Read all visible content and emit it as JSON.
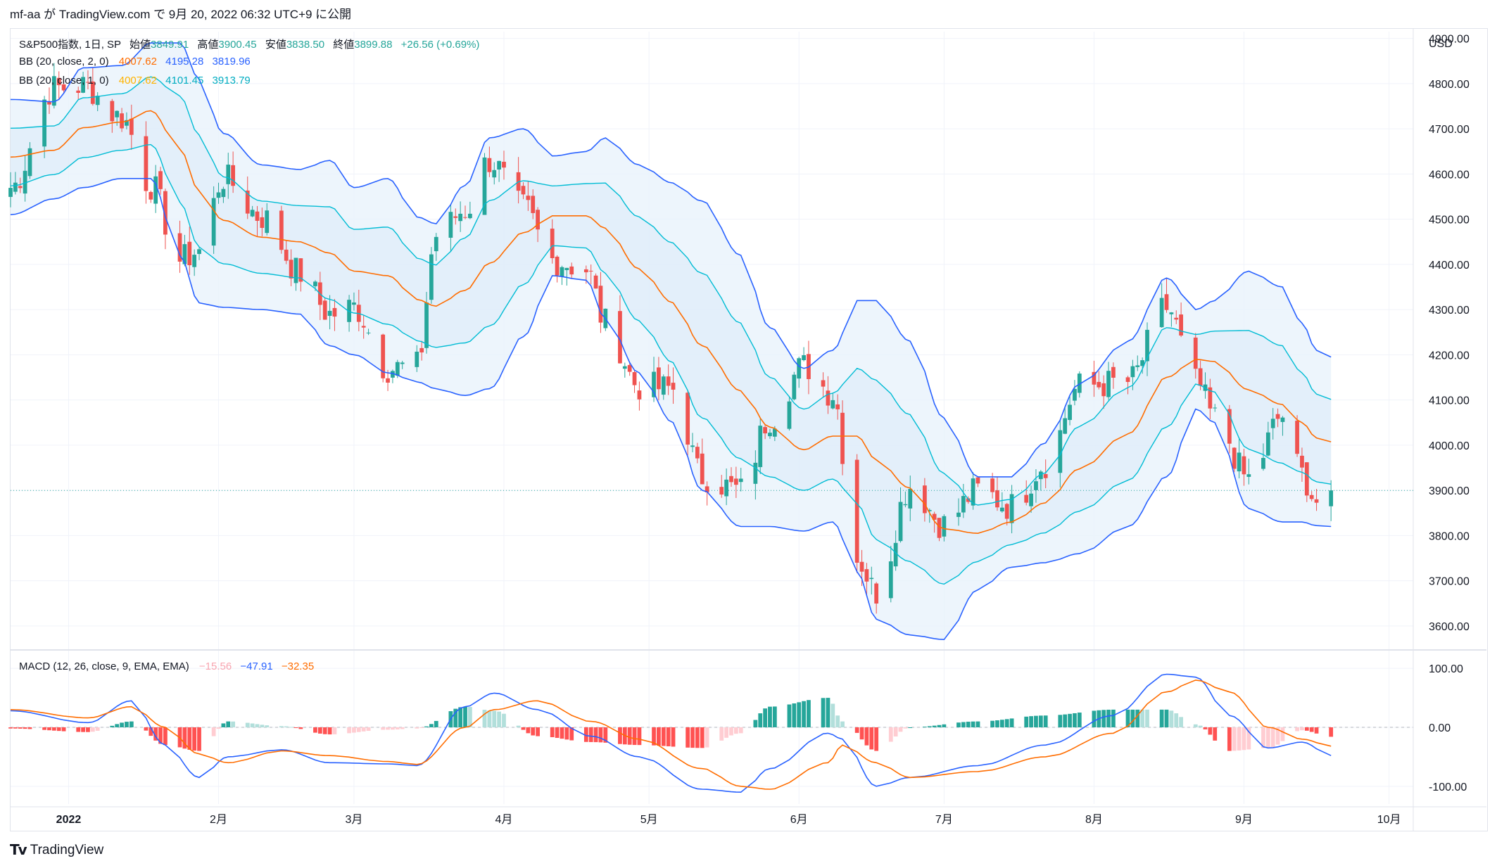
{
  "header": {
    "text": "mf-aa が TradingView.com で 9月 20, 2022 06:32 UTC+9 に公開"
  },
  "legend": {
    "main": {
      "name": "S&P500指数, 1日, SP",
      "o_label": "始値",
      "o": "3849.91",
      "h_label": "高値",
      "h": "3900.45",
      "l_label": "安値",
      "l": "3838.50",
      "c_label": "終値",
      "c": "3899.88",
      "chg": "+26.56 (+0.69%)"
    },
    "bb2": {
      "name": "BB (20, close, 2, 0)",
      "basis": "4007.62",
      "upper": "4195.28",
      "lower": "3819.96"
    },
    "bb1": {
      "name": "BB (20, close, 1, 0)",
      "basis": "4007.62",
      "upper": "4101.45",
      "lower": "3913.79"
    },
    "macd": {
      "name": "MACD (12, 26, close, 9, EMA, EMA)",
      "hist": "−15.56",
      "macd": "−47.91",
      "signal": "−32.35"
    }
  },
  "currency": "USD",
  "footer": {
    "brand": "TradingView"
  },
  "colors": {
    "up": "#26a69a",
    "down": "#ef5350",
    "bb2": "#2962ff",
    "bb1": "#00bcd4",
    "basis": "#ff6d00",
    "fill": "#e8f2fb",
    "macd": "#2962ff",
    "signal": "#ff6d00",
    "hist_up_strong": "#26a69a",
    "hist_up_weak": "#b2dfdb",
    "hist_down_strong": "#ff5252",
    "hist_down_weak": "#ffcdd2"
  },
  "chart_data": [
    {
      "type": "candlestick",
      "title": "S&P500指数, 1日, SP",
      "ylabel": "USD",
      "ylim": [
        3550,
        4915
      ],
      "y_ticks": [
        "3600.00",
        "3700.00",
        "3800.00",
        "3900.00",
        "4000.00",
        "4100.00",
        "4200.00",
        "4300.00",
        "4400.00",
        "4500.00",
        "4600.00",
        "4700.00",
        "4800.00",
        "4900.00"
      ],
      "x_ticks": [
        "2022",
        "2月",
        "3月",
        "4月",
        "5月",
        "6月",
        "7月",
        "8月",
        "9月",
        "10月"
      ],
      "x_range_dates": [
        "2021-12-20",
        "2022-10-06"
      ],
      "x_tick_dates": [
        "2022-01-01",
        "2022-02-01",
        "2022-03-01",
        "2022-04-01",
        "2022-05-01",
        "2022-06-01",
        "2022-07-01",
        "2022-08-01",
        "2022-09-01",
        "2022-10-01"
      ],
      "current_price": 3899.88,
      "anchors": [
        {
          "date": "2021-12-20",
          "close": 4570,
          "upper2": 4765,
          "lower2": 4510
        },
        {
          "date": "2021-12-29",
          "close": 4790,
          "upper2": 4760,
          "lower2": 4545
        },
        {
          "date": "2022-01-04",
          "close": 4795,
          "upper2": 4835,
          "lower2": 4570
        },
        {
          "date": "2022-01-12",
          "close": 4725,
          "upper2": 4840,
          "lower2": 4590
        },
        {
          "date": "2022-01-18",
          "close": 4575,
          "upper2": 4890,
          "lower2": 4590
        },
        {
          "date": "2022-01-24",
          "close": 4410,
          "upper2": 4890,
          "lower2": 4420
        },
        {
          "date": "2022-01-28",
          "close": 4430,
          "upper2": 4810,
          "lower2": 4315
        },
        {
          "date": "2022-02-02",
          "close": 4590,
          "upper2": 4690,
          "lower2": 4305
        },
        {
          "date": "2022-02-10",
          "close": 4505,
          "upper2": 4620,
          "lower2": 4300
        },
        {
          "date": "2022-02-18",
          "close": 4380,
          "upper2": 4610,
          "lower2": 4290
        },
        {
          "date": "2022-02-24",
          "close": 4290,
          "upper2": 4630,
          "lower2": 4220
        },
        {
          "date": "2022-03-01",
          "close": 4305,
          "upper2": 4570,
          "lower2": 4200
        },
        {
          "date": "2022-03-08",
          "close": 4170,
          "upper2": 4590,
          "lower2": 4160
        },
        {
          "date": "2022-03-14",
          "close": 4175,
          "upper2": 4505,
          "lower2": 4140
        },
        {
          "date": "2022-03-18",
          "close": 4465,
          "upper2": 4490,
          "lower2": 4125
        },
        {
          "date": "2022-03-24",
          "close": 4520,
          "upper2": 4575,
          "lower2": 4110
        },
        {
          "date": "2022-03-29",
          "close": 4630,
          "upper2": 4680,
          "lower2": 4125
        },
        {
          "date": "2022-04-05",
          "close": 4525,
          "upper2": 4700,
          "lower2": 4240
        },
        {
          "date": "2022-04-11",
          "close": 4410,
          "upper2": 4640,
          "lower2": 4375
        },
        {
          "date": "2022-04-18",
          "close": 4390,
          "upper2": 4650,
          "lower2": 4365
        },
        {
          "date": "2022-04-22",
          "close": 4270,
          "upper2": 4680,
          "lower2": 4280
        },
        {
          "date": "2022-04-29",
          "close": 4130,
          "upper2": 4620,
          "lower2": 4160
        },
        {
          "date": "2022-05-06",
          "close": 4125,
          "upper2": 4580,
          "lower2": 4050
        },
        {
          "date": "2022-05-12",
          "close": 3930,
          "upper2": 4540,
          "lower2": 3900
        },
        {
          "date": "2022-05-20",
          "close": 3900,
          "upper2": 4420,
          "lower2": 3820
        },
        {
          "date": "2022-05-26",
          "close": 4060,
          "upper2": 4260,
          "lower2": 3820
        },
        {
          "date": "2022-06-02",
          "close": 4175,
          "upper2": 4170,
          "lower2": 3810
        },
        {
          "date": "2022-06-08",
          "close": 4115,
          "upper2": 4210,
          "lower2": 3830
        },
        {
          "date": "2022-06-13",
          "close": 3750,
          "upper2": 4320,
          "lower2": 3720
        },
        {
          "date": "2022-06-17",
          "close": 3675,
          "upper2": 4320,
          "lower2": 3615
        },
        {
          "date": "2022-06-24",
          "close": 3910,
          "upper2": 4230,
          "lower2": 3580
        },
        {
          "date": "2022-07-01",
          "close": 3825,
          "upper2": 4060,
          "lower2": 3570
        },
        {
          "date": "2022-07-08",
          "close": 3900,
          "upper2": 3930,
          "lower2": 3680
        },
        {
          "date": "2022-07-15",
          "close": 3865,
          "upper2": 3930,
          "lower2": 3730
        },
        {
          "date": "2022-07-22",
          "close": 3960,
          "upper2": 4005,
          "lower2": 3740
        },
        {
          "date": "2022-07-29",
          "close": 4130,
          "upper2": 4135,
          "lower2": 3760
        },
        {
          "date": "2022-08-08",
          "close": 4140,
          "upper2": 4230,
          "lower2": 3820
        },
        {
          "date": "2022-08-16",
          "close": 4305,
          "upper2": 4370,
          "lower2": 3930
        },
        {
          "date": "2022-08-22",
          "close": 4140,
          "upper2": 4300,
          "lower2": 4080
        },
        {
          "date": "2022-08-26",
          "close": 4060,
          "upper2": 4320,
          "lower2": 4050
        },
        {
          "date": "2022-09-02",
          "close": 3925,
          "upper2": 4385,
          "lower2": 3860
        },
        {
          "date": "2022-09-09",
          "close": 4065,
          "upper2": 4350,
          "lower2": 3830
        },
        {
          "date": "2022-09-13",
          "close": 3935,
          "upper2": 4270,
          "lower2": 3830
        },
        {
          "date": "2022-09-16",
          "close": 3875,
          "upper2": 4210,
          "lower2": 3822
        },
        {
          "date": "2022-09-19",
          "close": 3900,
          "upper2": 4195,
          "lower2": 3820
        }
      ]
    },
    {
      "type": "bar+line",
      "title": "MACD (12, 26, close, 9, EMA, EMA)",
      "ylim": [
        -130,
        130
      ],
      "y_ticks": [
        "100.00",
        "0.00",
        "-100.00"
      ],
      "anchors": [
        {
          "date": "2021-12-20",
          "macd": 28,
          "signal": 30
        },
        {
          "date": "2022-01-05",
          "macd": 8,
          "signal": 16
        },
        {
          "date": "2022-01-14",
          "macd": 45,
          "signal": 35
        },
        {
          "date": "2022-01-21",
          "macd": -30,
          "signal": 0
        },
        {
          "date": "2022-01-28",
          "macd": -85,
          "signal": -45
        },
        {
          "date": "2022-02-03",
          "macd": -50,
          "signal": -60
        },
        {
          "date": "2022-02-14",
          "macd": -38,
          "signal": -40
        },
        {
          "date": "2022-02-24",
          "macd": -60,
          "signal": -48
        },
        {
          "date": "2022-03-08",
          "macd": -62,
          "signal": -58
        },
        {
          "date": "2022-03-14",
          "macd": -65,
          "signal": -63
        },
        {
          "date": "2022-03-24",
          "macd": 35,
          "signal": 0
        },
        {
          "date": "2022-03-30",
          "macd": 58,
          "signal": 30
        },
        {
          "date": "2022-04-08",
          "macd": 30,
          "signal": 45
        },
        {
          "date": "2022-04-19",
          "macd": -15,
          "signal": 10
        },
        {
          "date": "2022-04-29",
          "macd": -50,
          "signal": -20
        },
        {
          "date": "2022-05-12",
          "macd": -105,
          "signal": -70
        },
        {
          "date": "2022-05-20",
          "macd": -110,
          "signal": -100
        },
        {
          "date": "2022-05-26",
          "macd": -70,
          "signal": -105
        },
        {
          "date": "2022-06-07",
          "macd": -10,
          "signal": -60
        },
        {
          "date": "2022-06-10",
          "macd": -20,
          "signal": -30
        },
        {
          "date": "2022-06-17",
          "macd": -100,
          "signal": -60
        },
        {
          "date": "2022-06-24",
          "macd": -85,
          "signal": -85
        },
        {
          "date": "2022-07-08",
          "macd": -65,
          "signal": -75
        },
        {
          "date": "2022-07-22",
          "macd": -30,
          "signal": -50
        },
        {
          "date": "2022-08-05",
          "macd": 20,
          "signal": -10
        },
        {
          "date": "2022-08-16",
          "macd": 90,
          "signal": 60
        },
        {
          "date": "2022-08-22",
          "macd": 85,
          "signal": 80
        },
        {
          "date": "2022-08-29",
          "macd": 20,
          "signal": 60
        },
        {
          "date": "2022-09-06",
          "macd": -35,
          "signal": 0
        },
        {
          "date": "2022-09-13",
          "macd": -25,
          "signal": -20
        },
        {
          "date": "2022-09-19",
          "macd": -48,
          "signal": -32
        }
      ]
    }
  ]
}
